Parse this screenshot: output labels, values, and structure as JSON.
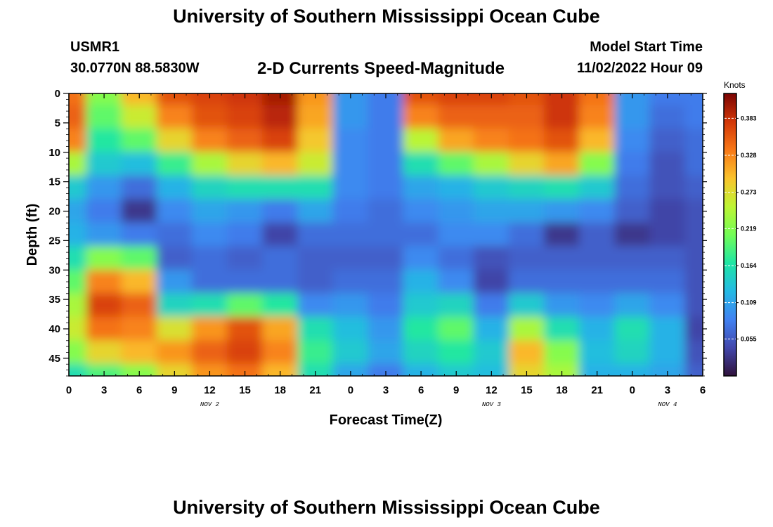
{
  "header": {
    "title": "University of Southern Mississippi Ocean Cube",
    "station_id": "USMR1",
    "coordinates": "30.0770N  88.5830W",
    "subtitle": "2-D Currents Speed-Magnitude",
    "start_label": "Model Start Time",
    "start_value": "11/02/2022 Hour 09"
  },
  "footer": {
    "title": "University of Southern Mississippi Ocean Cube"
  },
  "chart_data": {
    "type": "heatmap",
    "title": "2-D Currents Speed-Magnitude",
    "xlabel": "Forecast Time(Z)",
    "ylabel": "Depth (ft)",
    "x_tick_labels": [
      "0",
      "3",
      "6",
      "9",
      "12",
      "15",
      "18",
      "21",
      "0",
      "3",
      "6",
      "9",
      "12",
      "15",
      "18",
      "21",
      "0",
      "3",
      "6"
    ],
    "day_labels": [
      {
        "label": "NOV 2",
        "hour": 12
      },
      {
        "label": "NOV 3",
        "hour": 36
      },
      {
        "label": "NOV 4",
        "hour": 51
      }
    ],
    "xlim": [
      0,
      54
    ],
    "y_tick_labels": [
      "0",
      "5",
      "10",
      "15",
      "20",
      "25",
      "30",
      "35",
      "40",
      "45"
    ],
    "y_ticks": [
      0,
      5,
      10,
      15,
      20,
      25,
      30,
      35,
      40,
      45
    ],
    "ylim": [
      0,
      48
    ],
    "y_inverted": true,
    "colorbar": {
      "unit": "Knots",
      "ticks": [
        0.055,
        0.109,
        0.164,
        0.219,
        0.273,
        0.328,
        0.383
      ],
      "tick_labels": [
        "0.055",
        "0.109",
        "0.164",
        "0.219",
        "0.273",
        "0.328",
        "0.383"
      ],
      "range": [
        0.0,
        0.42
      ],
      "colormap": "turbo"
    },
    "hours": [
      0,
      3,
      6,
      9,
      12,
      15,
      18,
      21,
      24,
      27,
      30,
      33,
      36,
      39,
      42,
      45,
      48,
      51,
      54
    ],
    "depths": [
      0,
      4,
      8,
      12,
      16,
      20,
      24,
      28,
      32,
      36,
      40,
      44,
      48
    ],
    "values": [
      [
        0.34,
        0.22,
        0.3,
        0.36,
        0.37,
        0.38,
        0.4,
        0.32,
        0.1,
        0.08,
        0.36,
        0.37,
        0.37,
        0.36,
        0.38,
        0.34,
        0.1,
        0.08,
        0.08
      ],
      [
        0.35,
        0.2,
        0.26,
        0.33,
        0.36,
        0.37,
        0.39,
        0.31,
        0.1,
        0.08,
        0.33,
        0.35,
        0.35,
        0.35,
        0.38,
        0.33,
        0.1,
        0.07,
        0.08
      ],
      [
        0.33,
        0.17,
        0.2,
        0.28,
        0.33,
        0.35,
        0.37,
        0.29,
        0.09,
        0.08,
        0.25,
        0.31,
        0.33,
        0.34,
        0.36,
        0.3,
        0.09,
        0.06,
        0.07
      ],
      [
        0.24,
        0.14,
        0.13,
        0.18,
        0.24,
        0.28,
        0.3,
        0.26,
        0.09,
        0.08,
        0.16,
        0.2,
        0.24,
        0.28,
        0.31,
        0.22,
        0.08,
        0.05,
        0.07
      ],
      [
        0.14,
        0.1,
        0.07,
        0.12,
        0.15,
        0.16,
        0.16,
        0.16,
        0.09,
        0.08,
        0.11,
        0.12,
        0.14,
        0.15,
        0.16,
        0.14,
        0.07,
        0.05,
        0.06
      ],
      [
        0.11,
        0.08,
        0.03,
        0.09,
        0.11,
        0.1,
        0.08,
        0.11,
        0.08,
        0.07,
        0.09,
        0.1,
        0.11,
        0.11,
        0.1,
        0.09,
        0.06,
        0.04,
        0.05
      ],
      [
        0.12,
        0.1,
        0.08,
        0.07,
        0.09,
        0.08,
        0.04,
        0.07,
        0.07,
        0.07,
        0.07,
        0.09,
        0.09,
        0.07,
        0.03,
        0.06,
        0.03,
        0.04,
        0.05
      ],
      [
        0.16,
        0.22,
        0.2,
        0.06,
        0.07,
        0.06,
        0.07,
        0.06,
        0.06,
        0.06,
        0.09,
        0.07,
        0.05,
        0.06,
        0.06,
        0.06,
        0.06,
        0.06,
        0.05
      ],
      [
        0.2,
        0.33,
        0.3,
        0.1,
        0.07,
        0.07,
        0.07,
        0.06,
        0.07,
        0.07,
        0.12,
        0.09,
        0.04,
        0.07,
        0.07,
        0.07,
        0.07,
        0.07,
        0.05
      ],
      [
        0.24,
        0.37,
        0.35,
        0.15,
        0.16,
        0.2,
        0.17,
        0.09,
        0.1,
        0.08,
        0.14,
        0.15,
        0.08,
        0.14,
        0.1,
        0.09,
        0.11,
        0.09,
        0.05
      ],
      [
        0.26,
        0.34,
        0.33,
        0.27,
        0.32,
        0.36,
        0.31,
        0.16,
        0.13,
        0.1,
        0.17,
        0.2,
        0.12,
        0.24,
        0.16,
        0.12,
        0.16,
        0.12,
        0.04
      ],
      [
        0.22,
        0.28,
        0.3,
        0.32,
        0.35,
        0.37,
        0.33,
        0.18,
        0.14,
        0.11,
        0.15,
        0.17,
        0.14,
        0.3,
        0.22,
        0.13,
        0.15,
        0.12,
        0.05
      ],
      [
        0.16,
        0.19,
        0.22,
        0.28,
        0.32,
        0.34,
        0.3,
        0.16,
        0.11,
        0.08,
        0.12,
        0.14,
        0.13,
        0.28,
        0.24,
        0.12,
        0.12,
        0.11,
        0.06
      ]
    ]
  }
}
